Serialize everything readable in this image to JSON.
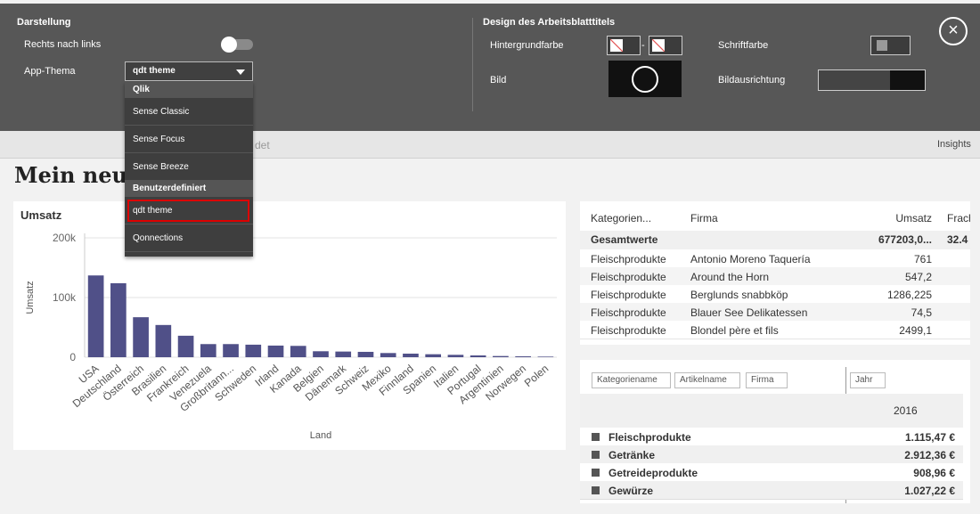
{
  "settings_panel": {
    "left": {
      "title": "Darstellung",
      "rtl_label": "Rechts nach links",
      "theme_label": "App-Thema",
      "theme_value": "qdt theme"
    },
    "right": {
      "title": "Design des Arbeitsblatttitels",
      "background_label": "Hintergrundfarbe",
      "font_color_label": "Schriftfarbe",
      "image_label": "Bild",
      "image_alignment_label": "Bildausrichtung"
    },
    "dropdown": {
      "groups": [
        {
          "name": "Qlik",
          "items": [
            "Sense Classic",
            "Sense Focus",
            "Sense Breeze"
          ]
        },
        {
          "name": "Benutzerdefiniert",
          "items": [
            "qdt theme",
            "Qonnections"
          ]
        }
      ]
    }
  },
  "toolbar": {
    "hidden_text": "det",
    "insights": "Insights"
  },
  "sheet_title": "Mein neues",
  "chart_data": {
    "type": "bar",
    "title": "Umsatz",
    "y_label": "Umsatz",
    "x_label": "Land",
    "color": "#505088",
    "grid": true,
    "categories": [
      "USA",
      "Deutschland",
      "Österreich",
      "Brasilien",
      "Frankreich",
      "Venezuela",
      "Großbritann...",
      "Schweden",
      "Irland",
      "Kanada",
      "Belgien",
      "Dänemark",
      "Schweiz",
      "Mexiko",
      "Finnland",
      "Spanien",
      "Italien",
      "Portugal",
      "Argentinien",
      "Norwegen",
      "Polen"
    ],
    "values": [
      137000,
      124000,
      67000,
      54000,
      36000,
      22000,
      22000,
      21000,
      19500,
      19000,
      10000,
      9500,
      9000,
      7000,
      6000,
      5000,
      4000,
      3000,
      2000,
      1500,
      1000
    ],
    "ylim": [
      0,
      200000
    ],
    "yticks": [
      0,
      {
        "value": 100000,
        "label": "100k"
      },
      {
        "value": 200000,
        "label": "200k"
      }
    ]
  },
  "table": {
    "headers": [
      "Kategorien...",
      "Firma",
      "Umsatz",
      "Frach"
    ],
    "totals": {
      "label": "Gesamtwerte",
      "umsatz": "677203,0...",
      "fracht": "32.4"
    },
    "rows": [
      [
        "Fleischprodukte",
        "Antonio Moreno Taquería",
        "761"
      ],
      [
        "Fleischprodukte",
        "Around the Horn",
        "547,2"
      ],
      [
        "Fleischprodukte",
        "Berglunds snabbköp",
        "1286,225"
      ],
      [
        "Fleischprodukte",
        "Blauer See Delikatessen",
        "74,5"
      ],
      [
        "Fleischprodukte",
        "Blondel père et fils",
        "2499,1"
      ]
    ]
  },
  "pivot": {
    "row_filters": [
      "Kategoriename",
      "Artikelname",
      "Firma"
    ],
    "column_filter": "Jahr",
    "column_value": "2016",
    "rows": [
      [
        "Fleischprodukte",
        "1.115,47 €"
      ],
      [
        "Getränke",
        "2.912,36 €"
      ],
      [
        "Getreideprodukte",
        "908,96 €"
      ],
      [
        "Gewürze",
        "1.027,22 €"
      ]
    ]
  }
}
